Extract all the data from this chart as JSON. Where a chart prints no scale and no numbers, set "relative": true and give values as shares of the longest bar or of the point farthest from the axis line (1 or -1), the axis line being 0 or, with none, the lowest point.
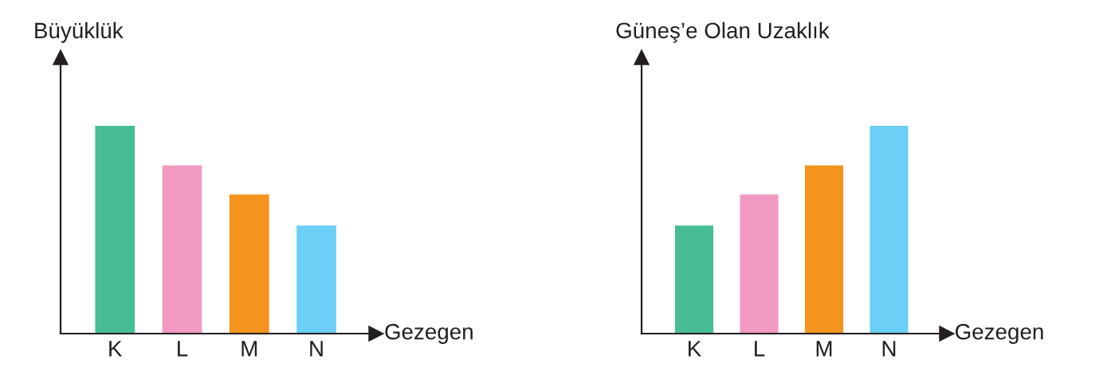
{
  "chart_data": [
    {
      "type": "bar",
      "ylabel": "Büyüklük",
      "xlabel": "Gezegen",
      "categories": [
        "K",
        "L",
        "M",
        "N"
      ],
      "values": [
        1,
        0.81,
        0.67,
        0.52
      ],
      "colors": [
        "#47bd96",
        "#f299c2",
        "#f4931e",
        "#6ccff6"
      ],
      "relative": true
    },
    {
      "type": "bar",
      "ylabel": "Güneş’e Olan Uzaklık",
      "xlabel": "Gezegen",
      "categories": [
        "K",
        "L",
        "M",
        "N"
      ],
      "values": [
        0.52,
        0.67,
        0.81,
        1
      ],
      "colors": [
        "#47bd96",
        "#f299c2",
        "#f4931e",
        "#6ccff6"
      ],
      "relative": true
    }
  ]
}
